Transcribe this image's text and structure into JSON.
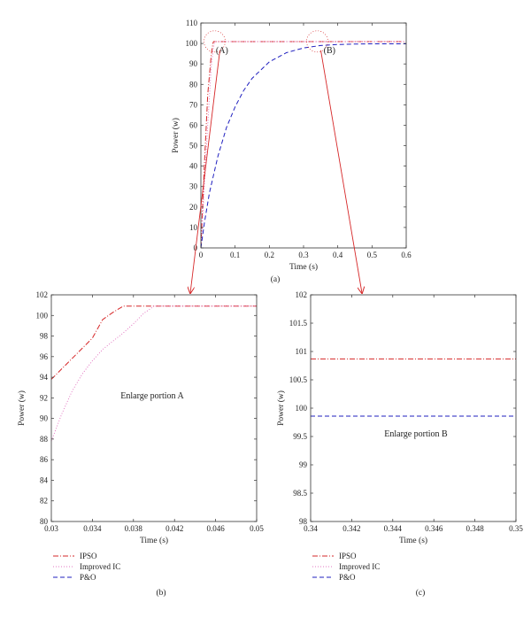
{
  "chart_data": [
    {
      "type": "line",
      "panel_label": "(a)",
      "xlabel": "Time (s)",
      "ylabel": "Power (w)",
      "xlim": [
        0,
        0.6
      ],
      "ylim": [
        0,
        110
      ],
      "xticks": [
        0,
        0.1,
        0.2,
        0.3,
        0.4,
        0.5,
        0.6
      ],
      "xtick_labels": [
        "0",
        "0.1",
        "0.2",
        "0.3",
        "0.4",
        "0.5",
        "0.6"
      ],
      "yticks": [
        0,
        10,
        20,
        30,
        40,
        50,
        60,
        70,
        80,
        90,
        100,
        110
      ],
      "ytick_labels": [
        "0",
        "10",
        "20",
        "30",
        "40",
        "50",
        "60",
        "70",
        "80",
        "90",
        "100",
        "110"
      ],
      "grid": false,
      "annotations": [
        {
          "text": "(A)",
          "x": 0.08,
          "y": 97
        },
        {
          "text": "(B)",
          "x": 0.4,
          "y": 97
        }
      ],
      "zoom_circles": [
        {
          "x": 0.04,
          "y": 101
        },
        {
          "x": 0.34,
          "y": 101
        }
      ],
      "series": [
        {
          "name": "IPSO",
          "color": "#d62728",
          "dash": "6,2,1,2",
          "x": [
            0,
            0.01,
            0.02,
            0.03,
            0.035,
            0.037,
            0.6
          ],
          "y": [
            0,
            40,
            75,
            94,
            100,
            100.9,
            100.9
          ]
        },
        {
          "name": "Improved IC",
          "color": "#e377c2",
          "dash": "1,2",
          "x": [
            0,
            0.01,
            0.02,
            0.03,
            0.036,
            0.04,
            0.6
          ],
          "y": [
            0,
            30,
            60,
            88,
            97,
            100.9,
            100.9
          ]
        },
        {
          "name": "P&O",
          "color": "#1f1fbf",
          "dash": "5,3",
          "x": [
            0,
            0.01,
            0.025,
            0.05,
            0.075,
            0.1,
            0.125,
            0.15,
            0.2,
            0.25,
            0.3,
            0.35,
            0.4,
            0.45,
            0.5,
            0.6
          ],
          "y": [
            0,
            12,
            27,
            45,
            59,
            69,
            77,
            83,
            91,
            95.5,
            97.8,
            99,
            99.5,
            99.7,
            99.85,
            99.85
          ]
        }
      ]
    },
    {
      "type": "line",
      "panel_label": "(b)",
      "xlabel": "Time (s)",
      "ylabel": "Power (w)",
      "xlim": [
        0.03,
        0.05
      ],
      "ylim": [
        80,
        102
      ],
      "xticks": [
        0.03,
        0.034,
        0.038,
        0.042,
        0.046,
        0.05
      ],
      "xtick_labels": [
        "0.03",
        "0.034",
        "0.038",
        "0.042",
        "0.046",
        "0.05"
      ],
      "yticks": [
        80,
        82,
        84,
        86,
        88,
        90,
        92,
        94,
        96,
        98,
        100,
        102
      ],
      "ytick_labels": [
        "80",
        "82",
        "84",
        "86",
        "88",
        "90",
        "92",
        "94",
        "96",
        "98",
        "100",
        "102"
      ],
      "grid": false,
      "annotation": "Enlarge portion A",
      "legend_position": "below",
      "series": [
        {
          "name": "IPSO",
          "color": "#d62728",
          "dash": "6,2,1,2",
          "x": [
            0.03,
            0.031,
            0.032,
            0.033,
            0.034,
            0.035,
            0.036,
            0.037,
            0.05
          ],
          "y": [
            93.8,
            94.8,
            95.8,
            96.8,
            97.8,
            99.6,
            100.3,
            100.9,
            100.9
          ]
        },
        {
          "name": "Improved IC",
          "color": "#e377c2",
          "dash": "1,2",
          "x": [
            0.03,
            0.031,
            0.032,
            0.033,
            0.034,
            0.035,
            0.036,
            0.037,
            0.038,
            0.039,
            0.04,
            0.05
          ],
          "y": [
            87.8,
            90.4,
            92.6,
            94.3,
            95.6,
            96.7,
            97.5,
            98.3,
            99.2,
            100.2,
            100.9,
            100.9
          ]
        },
        {
          "name": "P&O",
          "color": "#1f1fbf",
          "dash": "5,3",
          "x": [],
          "y": []
        }
      ]
    },
    {
      "type": "line",
      "panel_label": "(c)",
      "xlabel": "Time (s)",
      "ylabel": "Power (w)",
      "xlim": [
        0.34,
        0.35
      ],
      "ylim": [
        98,
        102
      ],
      "xticks": [
        0.34,
        0.342,
        0.344,
        0.346,
        0.348,
        0.35
      ],
      "xtick_labels": [
        "0.34",
        "0.342",
        "0.344",
        "0.346",
        "0.348",
        "0.35"
      ],
      "yticks": [
        98,
        98.5,
        99,
        99.5,
        100,
        100.5,
        101,
        101.5,
        102
      ],
      "ytick_labels": [
        "98",
        "98.5",
        "99",
        "99.5",
        "100",
        "100.5",
        "101",
        "101.5",
        "102"
      ],
      "grid": false,
      "annotation": "Enlarge portion B",
      "legend_position": "below",
      "series": [
        {
          "name": "IPSO",
          "color": "#d62728",
          "dash": "6,2,1,2",
          "x": [
            0.34,
            0.35
          ],
          "y": [
            100.87,
            100.87
          ]
        },
        {
          "name": "Improved IC",
          "color": "#e377c2",
          "dash": "1,2",
          "x": [],
          "y": []
        },
        {
          "name": "P&O",
          "color": "#1f1fbf",
          "dash": "5,3",
          "x": [
            0.34,
            0.35
          ],
          "y": [
            99.86,
            99.86
          ]
        }
      ]
    }
  ]
}
